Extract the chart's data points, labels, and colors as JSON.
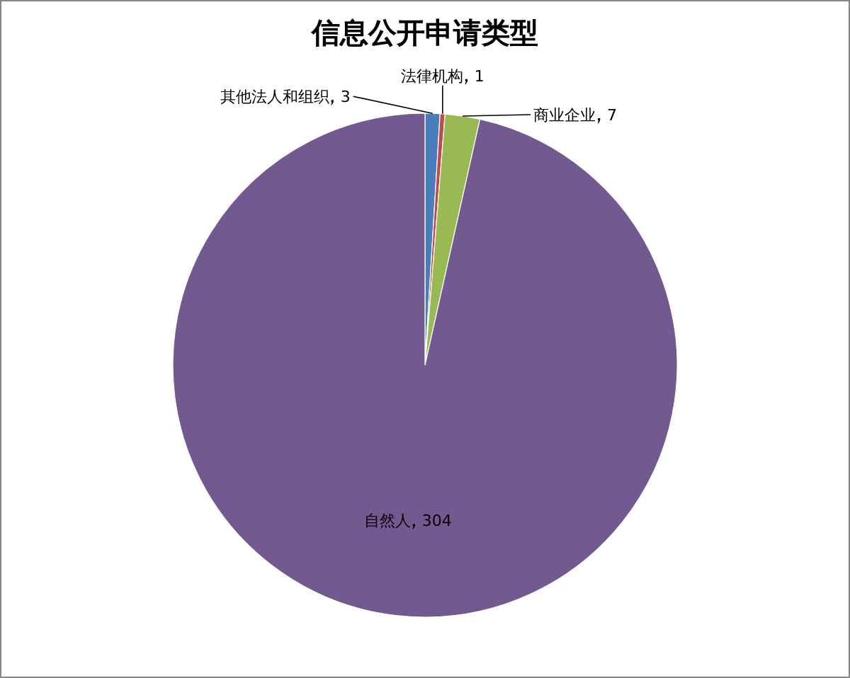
{
  "chart_data": {
    "type": "pie",
    "title": "信息公开申请类型",
    "categories": [
      "其他法人和组织",
      "法律机构",
      "商业企业",
      "自然人"
    ],
    "values": [
      3,
      1,
      7,
      304
    ],
    "colors": [
      "#4a7ebb",
      "#be4b48",
      "#98b954",
      "#725990"
    ],
    "data_labels": true
  }
}
